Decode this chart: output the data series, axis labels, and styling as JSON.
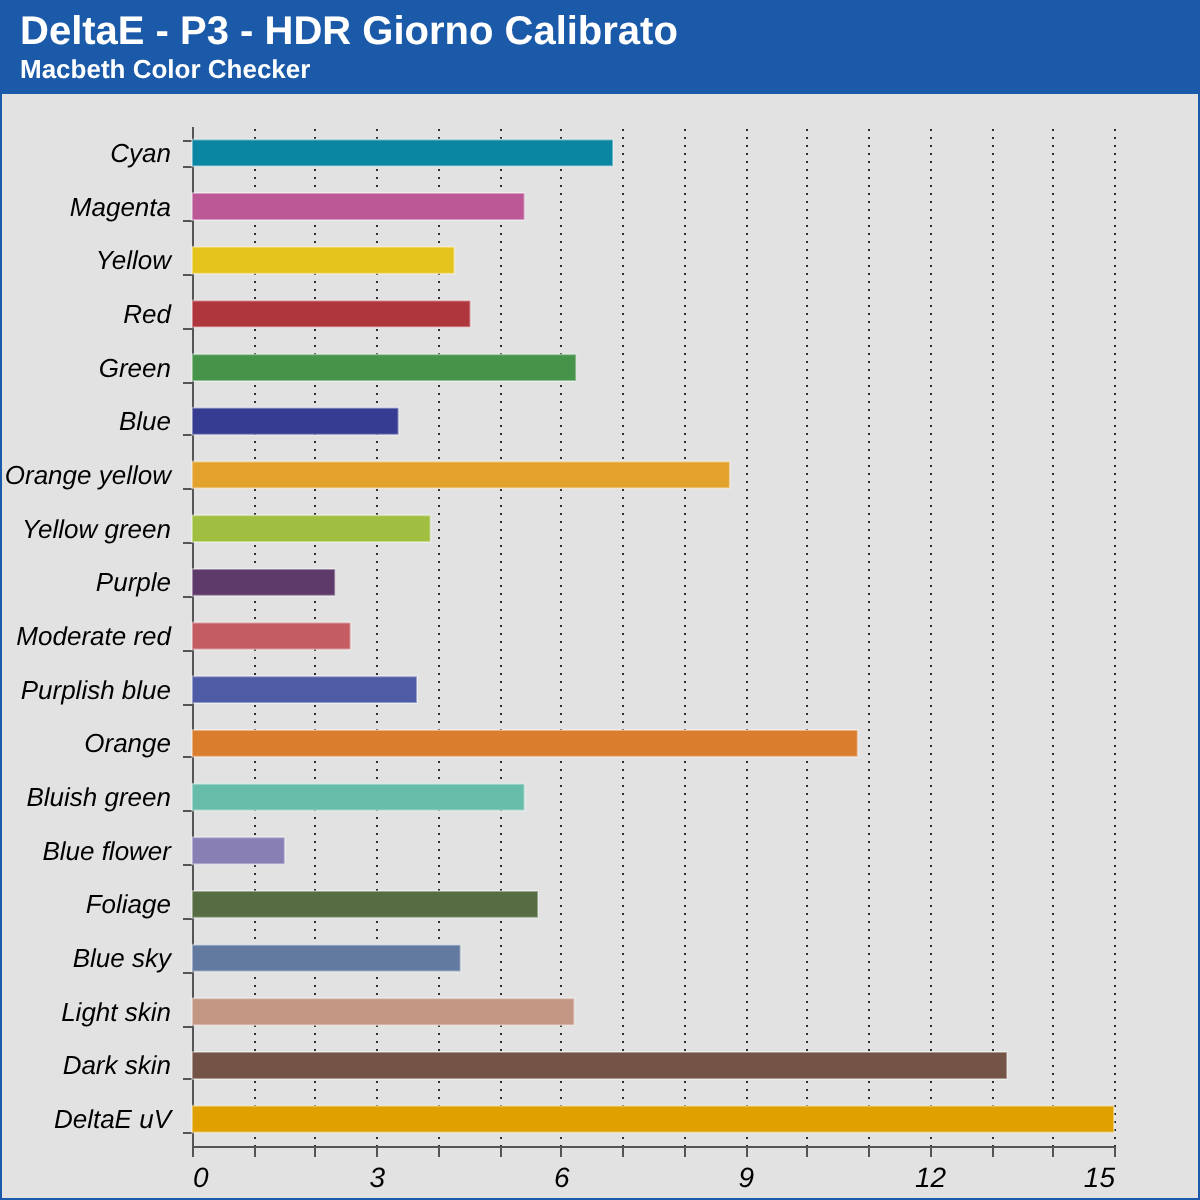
{
  "chart_data": {
    "type": "bar",
    "orientation": "horizontal",
    "title": "DeltaE - P3 - HDR Giorno Calibrato",
    "subtitle": "Macbeth Color Checker",
    "categories": [
      "Cyan",
      "Magenta",
      "Yellow",
      "Red",
      "Green",
      "Blue",
      "Orange yellow",
      "Yellow green",
      "Purple",
      "Moderate red",
      "Purplish blue",
      "Orange",
      "Bluish green",
      "Blue flower",
      "Foliage",
      "Blue sky",
      "Light skin",
      "Dark skin",
      "DeltaE uV"
    ],
    "values": [
      6.85,
      5.41,
      4.27,
      4.53,
      6.25,
      3.36,
      8.75,
      3.88,
      2.33,
      2.58,
      3.66,
      10.83,
      5.41,
      1.51,
      5.63,
      4.37,
      6.22,
      13.26,
      15
    ],
    "colors": [
      "#0a86a2",
      "#bc5896",
      "#e6c41e",
      "#b0363e",
      "#46944a",
      "#363c92",
      "#e2a22c",
      "#a0be40",
      "#5e3a6a",
      "#c45c64",
      "#4e5ca6",
      "#da7e2e",
      "#68bcaa",
      "#8880b4",
      "#566c42",
      "#627aa0",
      "#c49684",
      "#745446",
      "#e0a000"
    ],
    "xlim": [
      0,
      15
    ],
    "xticks": [
      0,
      {
        "value": 1,
        "label": null
      },
      {
        "value": 2,
        "label": null
      },
      3,
      {
        "value": 4,
        "label": null
      },
      {
        "value": 5,
        "label": null
      },
      6,
      {
        "value": 7,
        "label": null
      },
      {
        "value": 8,
        "label": null
      },
      9,
      {
        "value": 10,
        "label": null
      },
      {
        "value": 11,
        "label": null
      },
      12,
      {
        "value": 13,
        "label": null
      },
      {
        "value": 14,
        "label": null
      },
      15
    ],
    "grid": "x",
    "legend": false
  }
}
